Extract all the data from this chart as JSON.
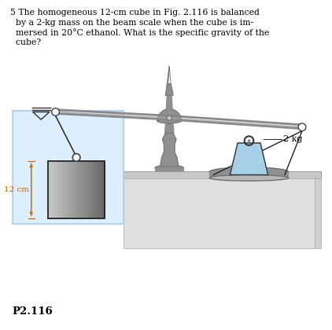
{
  "text_line1": "5 The homogeneous 12-cm cube in Fig. 2.116 is balanced",
  "text_line2": "  by a 2-kg mass on the beam scale when the cube is im-",
  "text_line3": "  mersed in 20°C ethanol. What is the specific gravity of the",
  "text_line4": "  cube?",
  "label_2kg": "2 kg",
  "label_12cm": "12 cm",
  "label_figure": "P2.116",
  "bg_color": "#ffffff",
  "fluid_color": "#ddeeff",
  "fluid_edge": "#aaccee",
  "cube_grad_light": "#c8c8c8",
  "cube_grad_dark": "#686868",
  "beam_color": "#888888",
  "beam_color2": "#aaaaaa",
  "weight_blue": "#a8d0e8",
  "weight_blue_dark": "#7aafc8",
  "metal_dark": "#707070",
  "metal_mid": "#909090",
  "metal_light": "#b0b0b0",
  "rope_color": "#222222",
  "table_top": "#c8c8c8",
  "table_face": "#e0e0e0",
  "pan_color": "#909090",
  "pan_light": "#b8b8b8",
  "text_color": "#000000",
  "dim_color": "#cc6600"
}
